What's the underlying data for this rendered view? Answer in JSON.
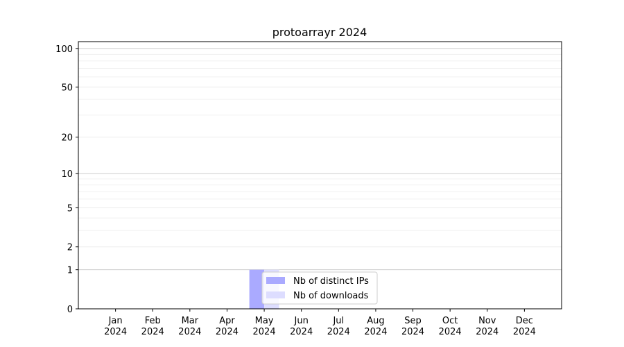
{
  "chart_data": {
    "type": "bar",
    "title": "protoarrayr 2024",
    "xlabel": "",
    "ylabel": "",
    "categories": [
      "Jan\n2024",
      "Feb\n2024",
      "Mar\n2024",
      "Apr\n2024",
      "May\n2024",
      "Jun\n2024",
      "Jul\n2024",
      "Aug\n2024",
      "Sep\n2024",
      "Oct\n2024",
      "Nov\n2024",
      "Dec\n2024"
    ],
    "series": [
      {
        "name": "Nb of distinct IPs",
        "color": "#aaaaff",
        "values": [
          0,
          0,
          0,
          0,
          1,
          0,
          0,
          0,
          0,
          0,
          0,
          0
        ]
      },
      {
        "name": "Nb of downloads",
        "color": "#ddddff",
        "values": [
          0,
          0,
          0,
          0,
          1,
          0,
          0,
          0,
          0,
          0,
          0,
          0
        ]
      }
    ],
    "yscale": "log(1+y)",
    "yticks": [
      0,
      1,
      2,
      5,
      10,
      20,
      50,
      100
    ],
    "ylim": [
      0,
      113
    ],
    "grid": true,
    "legend_placement": "lower-center"
  }
}
